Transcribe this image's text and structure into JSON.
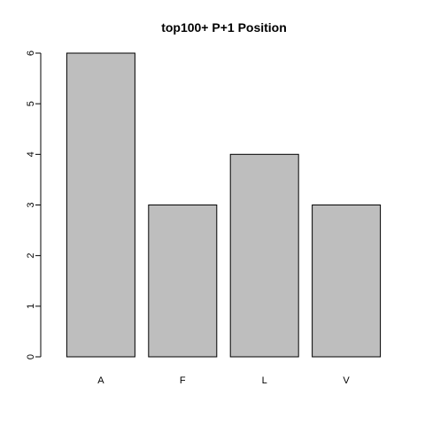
{
  "chart_data": {
    "type": "bar",
    "title": "top100+ P+1 Position",
    "xlabel": "",
    "ylabel": "",
    "categories": [
      "A",
      "F",
      "L",
      "V"
    ],
    "values": [
      6,
      3,
      4,
      3
    ],
    "ylim": [
      0,
      6
    ],
    "yticks": [
      "0",
      "1",
      "2",
      "3",
      "4",
      "5",
      "6"
    ],
    "grid": false,
    "colors": {
      "bar_fill": "#bebebe",
      "bar_stroke": "#000000"
    }
  }
}
